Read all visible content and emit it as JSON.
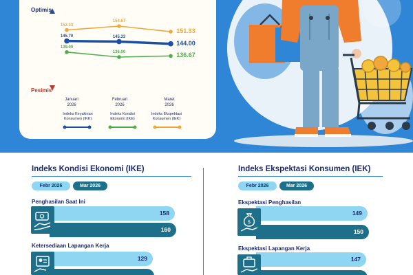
{
  "line_chart": {
    "optimis_label": "Optimis",
    "pesimis_label": "Pesimis",
    "months": [
      {
        "l1": "Januari",
        "l2": "2026"
      },
      {
        "l1": "Februari",
        "l2": "2026"
      },
      {
        "l1": "Maret",
        "l2": "2026"
      }
    ],
    "legend": [
      {
        "l1": "Indeks Keyakinan",
        "l2": "Konsumen (IKK)"
      },
      {
        "l1": "Indeks  Kondisi",
        "l2": "Ekonomi (IKE)"
      },
      {
        "l1": "Indeks  Ekspektasi",
        "l2": "Konsumen (IEK)"
      }
    ]
  },
  "chart_data": [
    {
      "type": "line",
      "x": [
        "Januari 2026",
        "Februari 2026",
        "Maret 2026"
      ],
      "y_axis_labels": [
        "Optimis",
        "Pesimis"
      ],
      "series": [
        {
          "name": "Indeks Keyakinan Konsumen (IKK)",
          "values": [
            145.7,
            145.33,
            144.0
          ],
          "labels": [
            "145.70",
            "145.33",
            "144.00"
          ],
          "color": "#1c4fa0"
        },
        {
          "name": "Indeks  Kondisi Ekonomi (IKE)",
          "values": [
            139.0,
            136.0,
            136.67
          ],
          "labels": [
            "139.00",
            "136.00",
            "136.67"
          ],
          "color": "#4cae4c"
        },
        {
          "name": "Indeks  Ekspektasi Konsumen (IEK)",
          "values": [
            152.33,
            154.67,
            151.33
          ],
          "labels": [
            "152.33",
            "154.67",
            "151.33"
          ],
          "color": "#f0a83c"
        }
      ]
    },
    {
      "type": "bar",
      "title": "Indeks Kondisi Ekonomi (IKE)",
      "series_names": [
        "Febr 2026",
        "Mar 2026"
      ],
      "groups": [
        {
          "category": "Penghasilan Saat Ini",
          "values": [
            158,
            160
          ]
        },
        {
          "category": "Ketersediaan Lapangan Kerja",
          "values": [
            129,
            null
          ]
        }
      ]
    },
    {
      "type": "bar",
      "title": "Indeks Ekspektasi Konsumen (IEK)",
      "series_names": [
        "Febr 2026",
        "Mar 2026"
      ],
      "groups": [
        {
          "category": "Ekspektasi Penghasilan",
          "values": [
            149,
            150
          ]
        },
        {
          "category": "Ekspektasi Lapangan Kerja",
          "values": [
            147,
            null
          ]
        }
      ]
    }
  ],
  "ike": {
    "title": "Indeks Kondisi Ekonomi (IKE)",
    "pill_feb": "Febr 2026",
    "pill_mar": "Mar 2026",
    "cat1": "Penghasilan Saat Ini",
    "cat1_feb": "158",
    "cat1_mar": "160",
    "cat2": "Ketersediaan Lapangan Kerja",
    "cat2_feb": "129"
  },
  "iek": {
    "title": "Indeks Ekspektasi Konsumen (IEK)",
    "pill_feb": "Febr 2026",
    "pill_mar": "Mar 2026",
    "cat1": "Ekspektasi Penghasilan",
    "cat1_feb": "149",
    "cat1_mar": "150",
    "cat2": "Ekspektasi Lapangan Kerja",
    "cat2_feb": "147"
  },
  "colors": {
    "banner": "#2f86d6",
    "ikk": "#1c4fa0",
    "ike": "#4cae4c",
    "iek": "#f0a83c",
    "bar_feb": "#8fd6f2",
    "bar_mar": "#1d6f8a",
    "title": "#1b2a6b"
  },
  "icons": [
    "money-hand-icon",
    "worker-card-icon",
    "money-bag-hand-icon",
    "briefcase-hand-icon",
    "shopper-with-cart-illustration"
  ]
}
